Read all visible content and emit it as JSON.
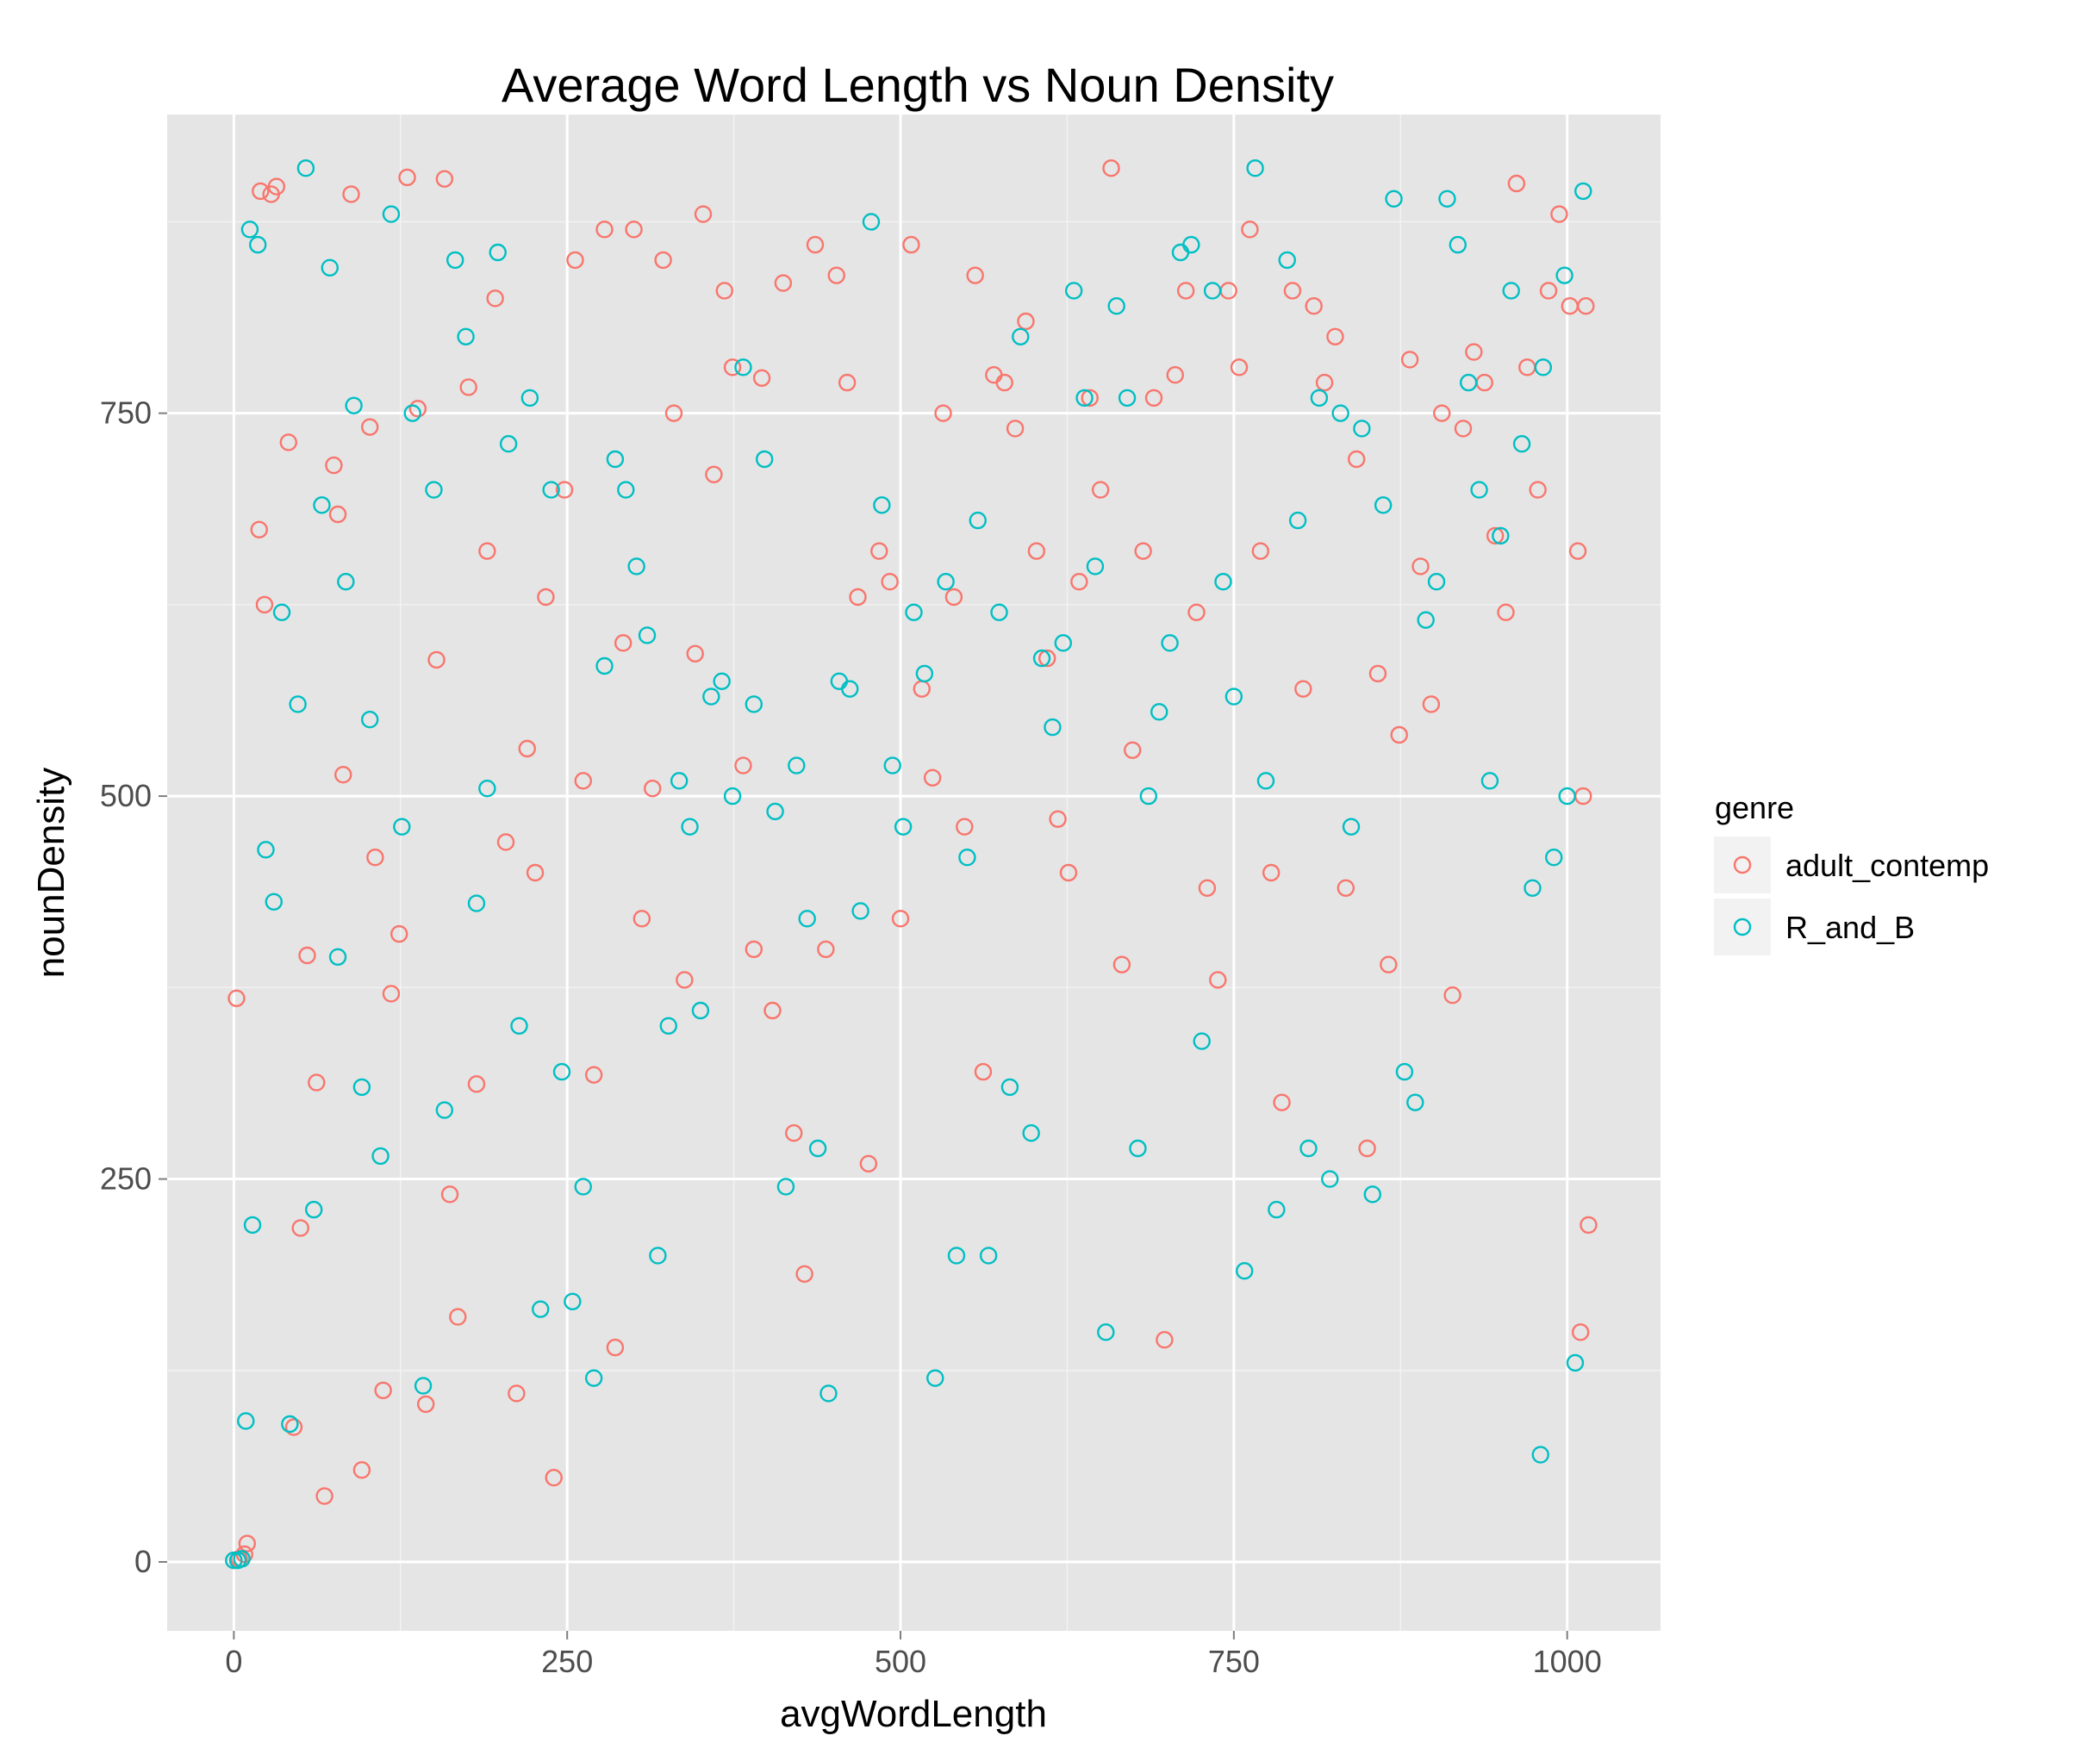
{
  "chart_data": {
    "type": "scatter",
    "title": "Average Word Length vs Noun Density",
    "xlabel": "avgWordLength",
    "ylabel": "nounDensity",
    "xlim": [
      -50,
      1070
    ],
    "ylim": [
      -45,
      945
    ],
    "x_ticks": [
      0,
      250,
      500,
      750,
      1000
    ],
    "y_ticks": [
      0,
      250,
      500,
      750
    ],
    "x_tick_labels": [
      "0",
      "250",
      "500",
      "750",
      "1000"
    ],
    "y_tick_labels": [
      "0",
      "250",
      "500",
      "750"
    ],
    "grid": true,
    "legend": {
      "title": "genre",
      "position": "right"
    },
    "series": [
      {
        "name": "adult_contemp",
        "color": "#F8766D",
        "points": [
          [
            0,
            1
          ],
          [
            4,
            2
          ],
          [
            8,
            5
          ],
          [
            2,
            368
          ],
          [
            10,
            12
          ],
          [
            20,
            895
          ],
          [
            28,
            893
          ],
          [
            32,
            898
          ],
          [
            23,
            625
          ],
          [
            41,
            731
          ],
          [
            19,
            674
          ],
          [
            45,
            88
          ],
          [
            50,
            218
          ],
          [
            55,
            396
          ],
          [
            62,
            313
          ],
          [
            68,
            43
          ],
          [
            75,
            716
          ],
          [
            78,
            684
          ],
          [
            82,
            514
          ],
          [
            88,
            893
          ],
          [
            96,
            60
          ],
          [
            102,
            741
          ],
          [
            106,
            460
          ],
          [
            112,
            112
          ],
          [
            118,
            371
          ],
          [
            124,
            410
          ],
          [
            130,
            904
          ],
          [
            138,
            753
          ],
          [
            144,
            103
          ],
          [
            152,
            589
          ],
          [
            158,
            903
          ],
          [
            162,
            240
          ],
          [
            168,
            160
          ],
          [
            176,
            767
          ],
          [
            182,
            312
          ],
          [
            190,
            660
          ],
          [
            196,
            825
          ],
          [
            204,
            470
          ],
          [
            212,
            110
          ],
          [
            220,
            531
          ],
          [
            226,
            450
          ],
          [
            234,
            630
          ],
          [
            240,
            55
          ],
          [
            248,
            700
          ],
          [
            256,
            850
          ],
          [
            262,
            510
          ],
          [
            270,
            318
          ],
          [
            278,
            870
          ],
          [
            286,
            140
          ],
          [
            292,
            600
          ],
          [
            300,
            870
          ],
          [
            306,
            420
          ],
          [
            314,
            505
          ],
          [
            322,
            850
          ],
          [
            330,
            750
          ],
          [
            338,
            380
          ],
          [
            346,
            593
          ],
          [
            352,
            880
          ],
          [
            360,
            710
          ],
          [
            368,
            830
          ],
          [
            374,
            780
          ],
          [
            382,
            520
          ],
          [
            390,
            400
          ],
          [
            396,
            773
          ],
          [
            404,
            360
          ],
          [
            412,
            835
          ],
          [
            420,
            280
          ],
          [
            428,
            188
          ],
          [
            436,
            860
          ],
          [
            444,
            400
          ],
          [
            452,
            840
          ],
          [
            460,
            770
          ],
          [
            468,
            630
          ],
          [
            476,
            260
          ],
          [
            484,
            660
          ],
          [
            492,
            640
          ],
          [
            500,
            420
          ],
          [
            508,
            860
          ],
          [
            516,
            570
          ],
          [
            524,
            512
          ],
          [
            532,
            750
          ],
          [
            540,
            630
          ],
          [
            548,
            480
          ],
          [
            556,
            840
          ],
          [
            562,
            320
          ],
          [
            570,
            775
          ],
          [
            578,
            770
          ],
          [
            586,
            740
          ],
          [
            594,
            810
          ],
          [
            602,
            660
          ],
          [
            610,
            590
          ],
          [
            618,
            485
          ],
          [
            626,
            450
          ],
          [
            634,
            640
          ],
          [
            642,
            760
          ],
          [
            650,
            700
          ],
          [
            658,
            910
          ],
          [
            666,
            390
          ],
          [
            674,
            530
          ],
          [
            682,
            660
          ],
          [
            690,
            760
          ],
          [
            698,
            145
          ],
          [
            706,
            775
          ],
          [
            714,
            830
          ],
          [
            722,
            620
          ],
          [
            730,
            440
          ],
          [
            738,
            380
          ],
          [
            746,
            830
          ],
          [
            754,
            780
          ],
          [
            762,
            870
          ],
          [
            770,
            660
          ],
          [
            778,
            450
          ],
          [
            786,
            300
          ],
          [
            794,
            830
          ],
          [
            802,
            570
          ],
          [
            810,
            820
          ],
          [
            818,
            770
          ],
          [
            826,
            800
          ],
          [
            834,
            440
          ],
          [
            842,
            720
          ],
          [
            850,
            270
          ],
          [
            858,
            580
          ],
          [
            866,
            390
          ],
          [
            874,
            540
          ],
          [
            882,
            785
          ],
          [
            890,
            650
          ],
          [
            898,
            560
          ],
          [
            906,
            750
          ],
          [
            914,
            370
          ],
          [
            922,
            740
          ],
          [
            930,
            790
          ],
          [
            938,
            770
          ],
          [
            946,
            670
          ],
          [
            954,
            620
          ],
          [
            962,
            900
          ],
          [
            970,
            780
          ],
          [
            978,
            700
          ],
          [
            986,
            830
          ],
          [
            994,
            880
          ],
          [
            1002,
            820
          ],
          [
            1008,
            660
          ],
          [
            1014,
            820
          ],
          [
            1012,
            500
          ],
          [
            1016,
            220
          ],
          [
            1010,
            150
          ]
        ]
      },
      {
        "name": "R_and_B",
        "color": "#00BFC4",
        "points": [
          [
            0,
            1
          ],
          [
            3,
            1
          ],
          [
            6,
            2
          ],
          [
            9,
            92
          ],
          [
            12,
            870
          ],
          [
            14,
            220
          ],
          [
            18,
            860
          ],
          [
            24,
            465
          ],
          [
            30,
            431
          ],
          [
            36,
            620
          ],
          [
            42,
            90
          ],
          [
            48,
            560
          ],
          [
            54,
            910
          ],
          [
            60,
            230
          ],
          [
            66,
            690
          ],
          [
            72,
            845
          ],
          [
            78,
            395
          ],
          [
            84,
            640
          ],
          [
            90,
            755
          ],
          [
            96,
            310
          ],
          [
            102,
            550
          ],
          [
            110,
            265
          ],
          [
            118,
            880
          ],
          [
            126,
            480
          ],
          [
            134,
            750
          ],
          [
            142,
            115
          ],
          [
            150,
            700
          ],
          [
            158,
            295
          ],
          [
            166,
            850
          ],
          [
            174,
            800
          ],
          [
            182,
            430
          ],
          [
            190,
            505
          ],
          [
            198,
            855
          ],
          [
            206,
            730
          ],
          [
            214,
            350
          ],
          [
            222,
            760
          ],
          [
            230,
            165
          ],
          [
            238,
            700
          ],
          [
            246,
            320
          ],
          [
            254,
            170
          ],
          [
            262,
            245
          ],
          [
            270,
            120
          ],
          [
            278,
            585
          ],
          [
            286,
            720
          ],
          [
            294,
            700
          ],
          [
            302,
            650
          ],
          [
            310,
            605
          ],
          [
            318,
            200
          ],
          [
            326,
            350
          ],
          [
            334,
            510
          ],
          [
            342,
            480
          ],
          [
            350,
            360
          ],
          [
            358,
            565
          ],
          [
            366,
            575
          ],
          [
            374,
            500
          ],
          [
            382,
            780
          ],
          [
            390,
            560
          ],
          [
            398,
            720
          ],
          [
            406,
            490
          ],
          [
            414,
            245
          ],
          [
            422,
            520
          ],
          [
            430,
            420
          ],
          [
            438,
            270
          ],
          [
            446,
            110
          ],
          [
            454,
            575
          ],
          [
            462,
            570
          ],
          [
            470,
            425
          ],
          [
            478,
            875
          ],
          [
            486,
            690
          ],
          [
            494,
            520
          ],
          [
            502,
            480
          ],
          [
            510,
            620
          ],
          [
            518,
            580
          ],
          [
            526,
            120
          ],
          [
            534,
            640
          ],
          [
            542,
            200
          ],
          [
            550,
            460
          ],
          [
            558,
            680
          ],
          [
            566,
            200
          ],
          [
            574,
            620
          ],
          [
            582,
            310
          ],
          [
            590,
            800
          ],
          [
            598,
            280
          ],
          [
            606,
            590
          ],
          [
            614,
            545
          ],
          [
            622,
            600
          ],
          [
            630,
            830
          ],
          [
            638,
            760
          ],
          [
            646,
            650
          ],
          [
            654,
            150
          ],
          [
            662,
            820
          ],
          [
            670,
            760
          ],
          [
            678,
            270
          ],
          [
            686,
            500
          ],
          [
            694,
            555
          ],
          [
            702,
            600
          ],
          [
            710,
            855
          ],
          [
            718,
            860
          ],
          [
            726,
            340
          ],
          [
            734,
            830
          ],
          [
            742,
            640
          ],
          [
            750,
            565
          ],
          [
            758,
            190
          ],
          [
            766,
            910
          ],
          [
            774,
            510
          ],
          [
            782,
            230
          ],
          [
            790,
            850
          ],
          [
            798,
            680
          ],
          [
            806,
            270
          ],
          [
            814,
            760
          ],
          [
            822,
            250
          ],
          [
            830,
            750
          ],
          [
            838,
            480
          ],
          [
            846,
            740
          ],
          [
            854,
            240
          ],
          [
            862,
            690
          ],
          [
            870,
            890
          ],
          [
            878,
            320
          ],
          [
            886,
            300
          ],
          [
            894,
            615
          ],
          [
            902,
            640
          ],
          [
            910,
            890
          ],
          [
            918,
            860
          ],
          [
            926,
            770
          ],
          [
            934,
            700
          ],
          [
            942,
            510
          ],
          [
            950,
            670
          ],
          [
            958,
            830
          ],
          [
            966,
            730
          ],
          [
            974,
            440
          ],
          [
            982,
            780
          ],
          [
            990,
            460
          ],
          [
            998,
            840
          ],
          [
            1006,
            130
          ],
          [
            1012,
            895
          ],
          [
            980,
            70
          ],
          [
            1000,
            500
          ]
        ]
      }
    ]
  }
}
